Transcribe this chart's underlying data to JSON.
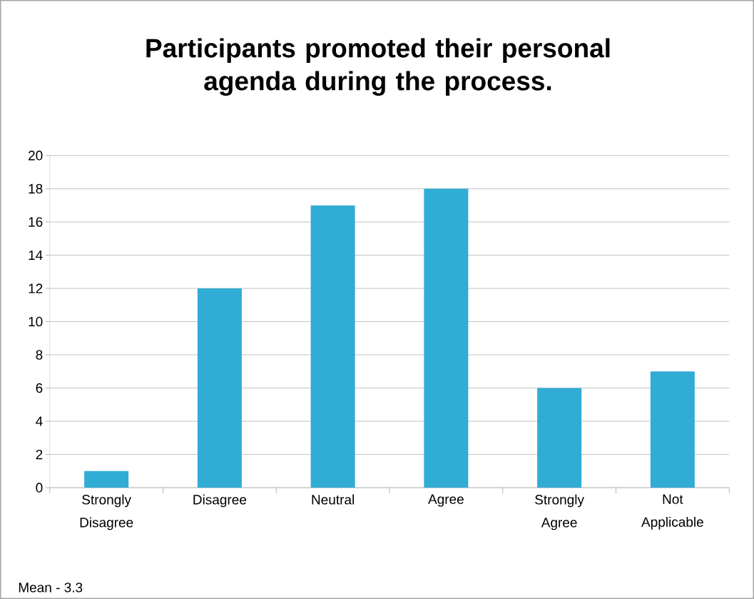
{
  "chart_data": {
    "type": "bar",
    "title": "Participants promoted their personal agenda during the process.",
    "categories": [
      "Strongly Disagree",
      "Disagree",
      "Neutral",
      "Agree",
      "Strongly Agree",
      "Not Applicable"
    ],
    "values": [
      1,
      12,
      17,
      18,
      6,
      7
    ],
    "color": "#31acd4",
    "ylim": [
      0,
      20
    ],
    "yticks": [
      0,
      2,
      4,
      6,
      8,
      10,
      12,
      14,
      16,
      18,
      20
    ],
    "grid": "y",
    "annotations": [
      "Mean - 3.3"
    ]
  }
}
